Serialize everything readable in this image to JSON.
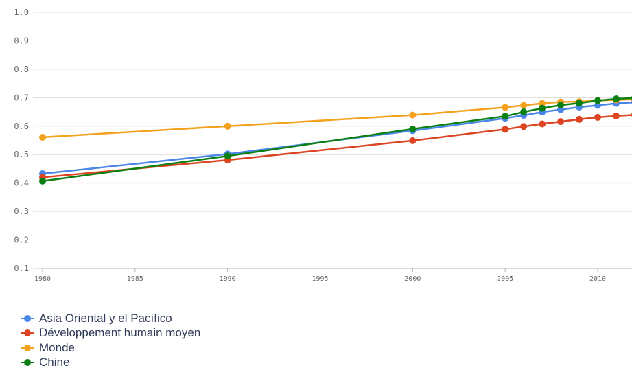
{
  "chart_data": {
    "type": "line",
    "x": [
      1980,
      1990,
      2000,
      2005,
      2006,
      2007,
      2008,
      2009,
      2010,
      2011,
      2012
    ],
    "x_ticks": [
      "1980",
      "1985",
      "1990",
      "1995",
      "2000",
      "2005",
      "2010"
    ],
    "y_ticks": [
      "1.0",
      "0.9",
      "0.8",
      "0.7",
      "0.6",
      "0.5",
      "0.4",
      "0.3",
      "0.2",
      "0.1"
    ],
    "xlim": [
      1980,
      2012
    ],
    "ylim": [
      0.1,
      1.0
    ],
    "grid": true,
    "legend_position": "bottom-left",
    "series": [
      {
        "name": "Asia Oriental y el Pacífico",
        "color": "#4a86e8",
        "values": [
          0.433,
          0.502,
          0.584,
          0.628,
          0.638,
          0.65,
          0.658,
          0.667,
          0.673,
          0.68,
          0.684
        ]
      },
      {
        "name": "Développement humain moyen",
        "color": "#dd4422",
        "values": [
          0.42,
          0.481,
          0.549,
          0.589,
          0.599,
          0.608,
          0.616,
          0.624,
          0.631,
          0.636,
          0.64
        ]
      },
      {
        "name": "Monde",
        "color": "#f4a21d",
        "values": [
          0.561,
          0.6,
          0.639,
          0.666,
          0.673,
          0.68,
          0.685,
          0.686,
          0.69,
          0.692,
          0.694
        ]
      },
      {
        "name": "Chine",
        "color": "#0b8012",
        "values": [
          0.407,
          0.495,
          0.59,
          0.635,
          0.65,
          0.663,
          0.674,
          0.681,
          0.69,
          0.696,
          0.699
        ]
      }
    ]
  }
}
